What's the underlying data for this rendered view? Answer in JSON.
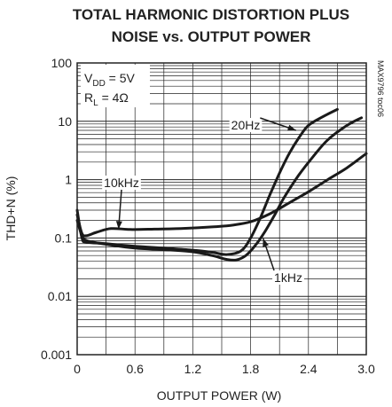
{
  "chart_data": {
    "type": "line",
    "title_lines": [
      "TOTAL HARMONIC DISTORTION PLUS",
      "NOISE vs. OUTPUT POWER"
    ],
    "xlabel": "OUTPUT POWER (W)",
    "ylabel": "THD+N (%)",
    "xlim": [
      0,
      3.0
    ],
    "ylim": [
      0.001,
      100
    ],
    "yscale": "log",
    "x_ticks": [
      "0",
      "0.6",
      "1.2",
      "1.8",
      "2.4",
      "3.0"
    ],
    "y_ticks": [
      "0.001",
      "0.01",
      "0.1",
      "1",
      "10",
      "100"
    ],
    "grid": true,
    "conditions": {
      "vdd_main": "V",
      "vdd_sub": "DD",
      "vdd_value": " = 5V",
      "rl_main": "R",
      "rl_sub": "L",
      "rl_value": " = 4Ω"
    },
    "side_label": "MAX9796 toc06",
    "series": [
      {
        "name": "20Hz",
        "x": [
          0.0,
          0.05,
          0.1,
          0.3,
          0.6,
          0.9,
          1.2,
          1.4,
          1.55,
          1.7,
          1.8,
          1.9,
          2.0,
          2.1,
          2.2,
          2.3,
          2.4,
          2.55,
          2.7
        ],
        "y": [
          0.3,
          0.1,
          0.085,
          0.08,
          0.072,
          0.067,
          0.062,
          0.057,
          0.052,
          0.06,
          0.1,
          0.22,
          0.55,
          1.3,
          2.8,
          5.2,
          8.5,
          12,
          16
        ]
      },
      {
        "name": "1kHz",
        "x": [
          0.0,
          0.05,
          0.1,
          0.3,
          0.6,
          0.9,
          1.2,
          1.4,
          1.55,
          1.65,
          1.75,
          1.85,
          1.95,
          2.05,
          2.15,
          2.3,
          2.45,
          2.6,
          2.8,
          2.95
        ],
        "y": [
          0.2,
          0.11,
          0.09,
          0.078,
          0.067,
          0.063,
          0.058,
          0.05,
          0.043,
          0.042,
          0.05,
          0.075,
          0.13,
          0.25,
          0.5,
          1.2,
          2.5,
          4.8,
          8.5,
          11.5
        ]
      },
      {
        "name": "10kHz",
        "x": [
          0.0,
          0.05,
          0.1,
          0.2,
          0.35,
          0.55,
          0.8,
          1.1,
          1.4,
          1.6,
          1.8,
          2.0,
          2.2,
          2.4,
          2.6,
          2.8,
          3.0
        ],
        "y": [
          0.25,
          0.12,
          0.11,
          0.125,
          0.145,
          0.14,
          0.142,
          0.146,
          0.155,
          0.165,
          0.19,
          0.26,
          0.4,
          0.62,
          1.0,
          1.6,
          2.8
        ]
      }
    ],
    "annotations": [
      {
        "text": "20Hz",
        "series": "20Hz"
      },
      {
        "text": "10kHz",
        "series": "10kHz"
      },
      {
        "text": "1kHz",
        "series": "1kHz"
      }
    ]
  }
}
